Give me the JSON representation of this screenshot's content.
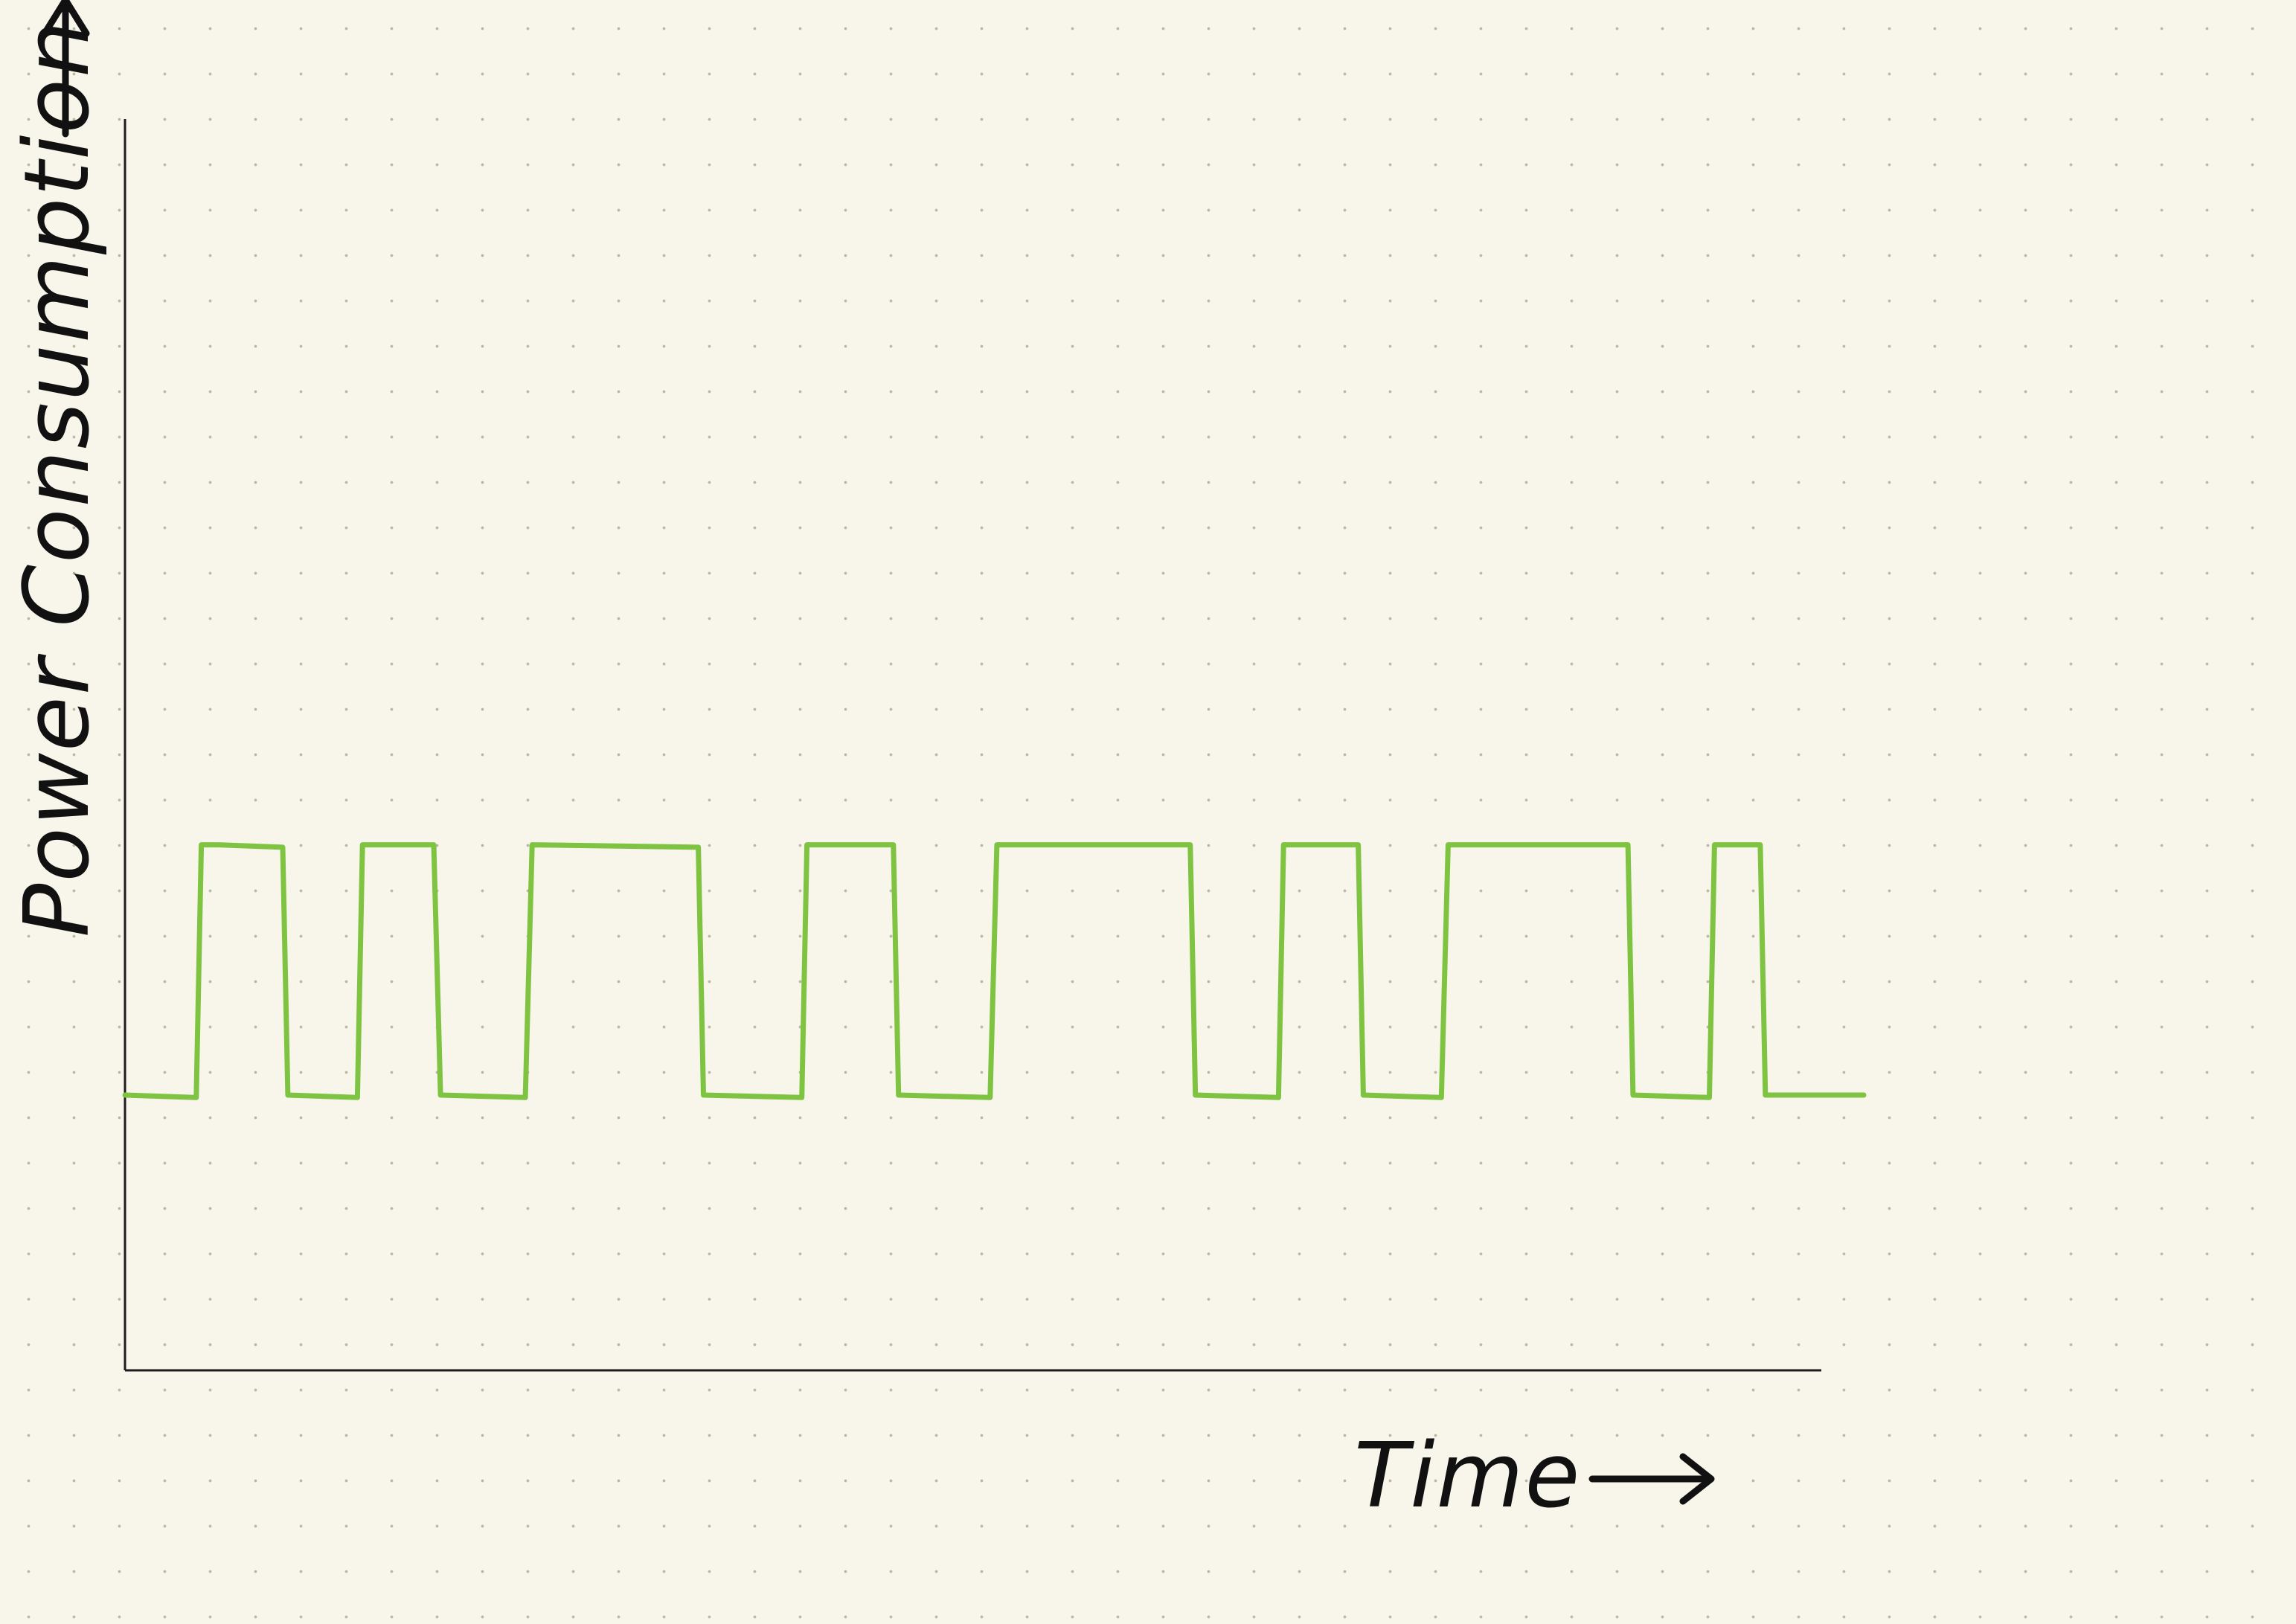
{
  "chart_data": {
    "type": "line",
    "xlabel": "Time",
    "ylabel": "Power Consumption",
    "grid": false,
    "legend": "none",
    "colors": {
      "axis": "#1c1c1c",
      "series": "#7ec442",
      "label": "#111111",
      "background": "#f8f6ea"
    },
    "xlim": [
      0,
      100
    ],
    "ylim": [
      0,
      100
    ],
    "series": [
      {
        "name": "",
        "points": [
          [
            0,
            22
          ],
          [
            4.2,
            21.8
          ],
          [
            4.5,
            42
          ],
          [
            5.5,
            42
          ],
          [
            9.3,
            41.8
          ],
          [
            9.6,
            22
          ],
          [
            13.7,
            21.8
          ],
          [
            14.0,
            42
          ],
          [
            18.2,
            42
          ],
          [
            18.6,
            22
          ],
          [
            23.6,
            21.8
          ],
          [
            24.0,
            42
          ],
          [
            33.8,
            41.8
          ],
          [
            34.1,
            22
          ],
          [
            39.9,
            21.8
          ],
          [
            40.2,
            42
          ],
          [
            45.3,
            42
          ],
          [
            45.6,
            22
          ],
          [
            51.0,
            21.8
          ],
          [
            51.4,
            42
          ],
          [
            62.8,
            42
          ],
          [
            63.1,
            22
          ],
          [
            68.0,
            21.8
          ],
          [
            68.3,
            42
          ],
          [
            72.7,
            42
          ],
          [
            73.0,
            22
          ],
          [
            77.6,
            21.8
          ],
          [
            78.0,
            42
          ],
          [
            88.6,
            42
          ],
          [
            88.9,
            22
          ],
          [
            93.4,
            21.8
          ],
          [
            93.7,
            42
          ],
          [
            96.4,
            42
          ],
          [
            96.7,
            22
          ],
          [
            102.5,
            22
          ]
        ]
      }
    ]
  }
}
